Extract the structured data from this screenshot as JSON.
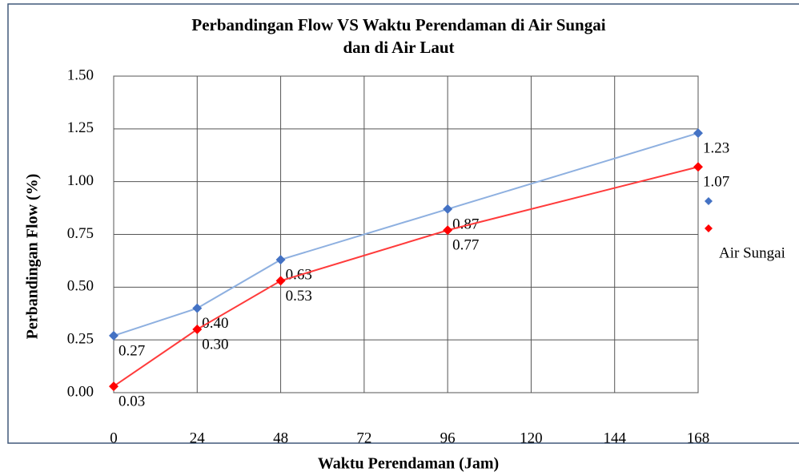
{
  "chart_data": {
    "type": "line",
    "title": [
      "Perbandingan Flow VS Waktu Perendaman di Air Sungai",
      "dan di Air Laut"
    ],
    "x_label": "Waktu Perendaman (Jam)",
    "y_label": "Perbandingan Flow (%)",
    "x": [
      0,
      24,
      48,
      96,
      168
    ],
    "series": [
      {
        "name": null,
        "color": "#4472c4",
        "line_color": "#8eb0e0",
        "values": [
          0.27,
          0.4,
          0.63,
          0.87,
          1.23
        ],
        "value_labels": [
          "0.27",
          "0.40",
          "0.63",
          "0.87",
          "1.23"
        ]
      },
      {
        "name": "Air Sungai",
        "color": "#ff0000",
        "line_color": "#ff3b3b",
        "values": [
          0.03,
          0.3,
          0.53,
          0.77,
          1.07
        ],
        "value_labels": [
          "0.03",
          "0.30",
          "0.53",
          "0.77",
          "1.07"
        ]
      }
    ],
    "xlim": [
      0,
      168
    ],
    "xticks": [
      0,
      24,
      48,
      72,
      96,
      120,
      144,
      168
    ],
    "ylim": [
      0,
      1.5
    ],
    "yticks": [
      {
        "value": 0,
        "label": "0.00"
      },
      {
        "value": 0.25,
        "label": "0.25"
      },
      {
        "value": 0.5,
        "label": "0.50"
      },
      {
        "value": 0.75,
        "label": "0.75"
      },
      {
        "value": 1,
        "label": "1.00"
      },
      {
        "value": 1.25,
        "label": "1.25"
      },
      {
        "value": 1.5,
        "label": "1.50"
      }
    ],
    "grid": true
  }
}
